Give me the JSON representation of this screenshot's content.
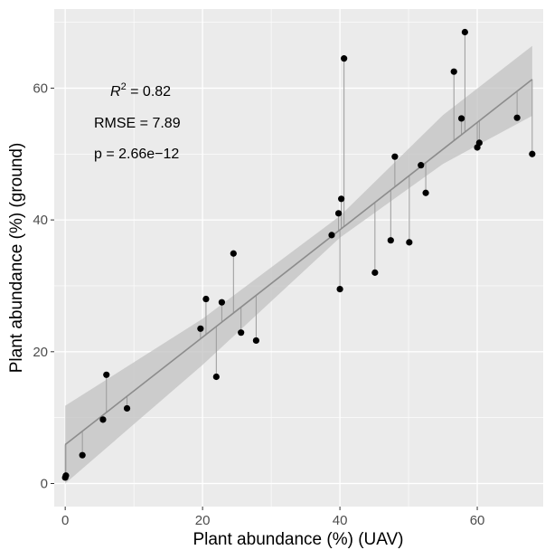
{
  "chart_data": {
    "type": "scatter",
    "title": "",
    "xlabel": "Plant abundance (%) (UAV)",
    "ylabel": "Plant abundance (%) (ground)",
    "xlim": [
      -1.6,
      69.6
    ],
    "ylim": [
      -3.5,
      72.0
    ],
    "xticks": [
      0,
      20,
      40,
      60
    ],
    "yticks": [
      0,
      20,
      40,
      60
    ],
    "grid": true,
    "panel_color": "#ebebeb",
    "point_color": "#000000",
    "regression": {
      "intercept": 5.9,
      "slope": 0.815,
      "x_range": [
        0,
        68
      ],
      "ci_lower": [
        [
          0,
          0
        ],
        [
          20,
          18.0
        ],
        [
          40,
          37.3
        ],
        [
          55,
          48.5
        ],
        [
          68,
          55.8
        ]
      ],
      "ci_upper": [
        [
          0,
          11.8
        ],
        [
          20,
          25.0
        ],
        [
          40,
          40.6
        ],
        [
          55,
          55.9
        ],
        [
          68,
          66.4
        ]
      ]
    },
    "annotations": {
      "r2_symbol": "R",
      "r2_exponent": "2",
      "r2_value": " = 0.82",
      "rmse": "RMSE = 7.89",
      "p": "p = 2.66e−12"
    },
    "points": [
      {
        "x": 0,
        "y": 0.9
      },
      {
        "x": 0.1,
        "y": 1.2
      },
      {
        "x": 2.5,
        "y": 4.3
      },
      {
        "x": 5.5,
        "y": 9.7
      },
      {
        "x": 6.0,
        "y": 16.5
      },
      {
        "x": 9.0,
        "y": 11.4
      },
      {
        "x": 19.7,
        "y": 23.5
      },
      {
        "x": 20.5,
        "y": 28.0
      },
      {
        "x": 22.0,
        "y": 16.2
      },
      {
        "x": 22.8,
        "y": 27.5
      },
      {
        "x": 24.5,
        "y": 34.9
      },
      {
        "x": 25.6,
        "y": 22.9
      },
      {
        "x": 27.8,
        "y": 21.7
      },
      {
        "x": 38.8,
        "y": 37.7
      },
      {
        "x": 39.8,
        "y": 41.0
      },
      {
        "x": 40.0,
        "y": 29.5
      },
      {
        "x": 40.2,
        "y": 43.2
      },
      {
        "x": 40.6,
        "y": 64.5
      },
      {
        "x": 45.1,
        "y": 32.0
      },
      {
        "x": 47.4,
        "y": 36.9
      },
      {
        "x": 48.0,
        "y": 49.6
      },
      {
        "x": 50.1,
        "y": 36.6
      },
      {
        "x": 51.8,
        "y": 48.3
      },
      {
        "x": 52.5,
        "y": 44.1
      },
      {
        "x": 56.6,
        "y": 62.5
      },
      {
        "x": 57.7,
        "y": 55.4
      },
      {
        "x": 58.2,
        "y": 68.5
      },
      {
        "x": 60.0,
        "y": 51.0
      },
      {
        "x": 60.3,
        "y": 51.7
      },
      {
        "x": 65.8,
        "y": 55.5
      },
      {
        "x": 68.0,
        "y": 50.0
      }
    ]
  }
}
